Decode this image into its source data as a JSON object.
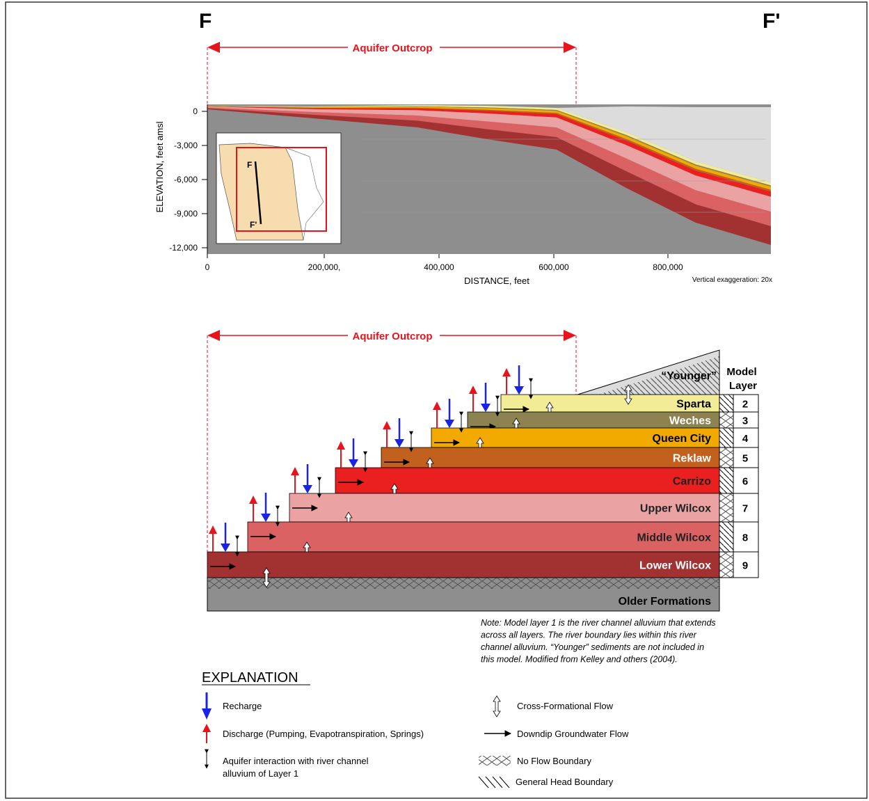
{
  "section": {
    "left_label": "F",
    "right_label": "F'",
    "outcrop_label": "Aquifer Outcrop",
    "y_axis_title": "ELEVATION, feet amsl",
    "x_axis_title": "DISTANCE, feet",
    "yticks": [
      "0",
      "-3,000",
      "-6,000",
      "-9,000",
      "-12,000"
    ],
    "xticks": [
      "0",
      "200,000,",
      "400,000",
      "600,000",
      "800,000"
    ],
    "exaggeration": "Vertical exaggeration: 20x",
    "inset_labels": [
      "F",
      "F'"
    ]
  },
  "block": {
    "outcrop_label": "Aquifer Outcrop",
    "younger": "“Younger”",
    "model_layer_header": [
      "Model",
      "Layer"
    ],
    "layers": [
      {
        "name": "Sparta",
        "layer": "2",
        "color": "#f2ec96"
      },
      {
        "name": "Weches",
        "layer": "3",
        "color": "#8c8350"
      },
      {
        "name": "Queen City",
        "layer": "4",
        "color": "#f2aa00"
      },
      {
        "name": "Reklaw",
        "layer": "5",
        "color": "#c2601e"
      },
      {
        "name": "Carrizo",
        "layer": "6",
        "color": "#ea1f1f"
      },
      {
        "name": "Upper Wilcox",
        "layer": "7",
        "color": "#eaa2a2"
      },
      {
        "name": "Middle Wilcox",
        "layer": "8",
        "color": "#da6262"
      },
      {
        "name": "Lower Wilcox",
        "layer": "9",
        "color": "#a23232"
      }
    ],
    "older": "Older Formations"
  },
  "note": [
    "Note: Model layer 1 is the river channel alluvium that extends",
    "across all layers. The river boundary lies within this river",
    "channel alluvium. “Younger” sediments are not included in",
    "this model. Modified from Kelley and others (2004)."
  ],
  "explanation": {
    "title": "EXPLANATION",
    "recharge": "Recharge",
    "discharge": "Discharge (Pumping, Evapotranspiration, Springs)",
    "interaction": [
      "Aquifer interaction with river channel",
      "alluvium of Layer 1"
    ],
    "cross_flow": "Cross-Formational Flow",
    "downdip": "Downdip Groundwater Flow",
    "no_flow": "No Flow Boundary",
    "general_head": "General Head Boundary"
  }
}
